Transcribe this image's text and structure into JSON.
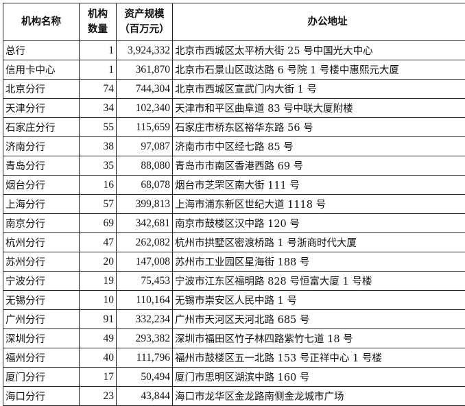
{
  "table": {
    "headers": {
      "name": "机构名称",
      "count_line1": "机构",
      "count_line2": "数量",
      "assets_line1": "资产规模",
      "assets_line2": "（百万元）",
      "address": "办公地址"
    },
    "rows": [
      {
        "name": "总行",
        "count": "1",
        "assets": "3,924,332",
        "address": "北京市西城区太平桥大街 25 号中国光大中心"
      },
      {
        "name": "信用卡中心",
        "count": "1",
        "assets": "361,870",
        "address": "北京市石景山区政达路 6 号院 1 号楼中惠熙元大厦"
      },
      {
        "name": "北京分行",
        "count": "74",
        "assets": "744,304",
        "address": "北京市西城区宣武门内大街 1 号"
      },
      {
        "name": "天津分行",
        "count": "34",
        "assets": "102,340",
        "address": "天津市和平区曲阜道 83 号中联大厦附楼"
      },
      {
        "name": "石家庄分行",
        "count": "55",
        "assets": "115,659",
        "address": "石家庄市桥东区裕华东路 56 号"
      },
      {
        "name": "济南分行",
        "count": "38",
        "assets": "97,087",
        "address": "济南市市中区经七路 85 号"
      },
      {
        "name": "青岛分行",
        "count": "35",
        "assets": "88,080",
        "address": "青岛市市南区香港西路 69 号"
      },
      {
        "name": "烟台分行",
        "count": "16",
        "assets": "68,078",
        "address": "烟台市芝罘区南大街 111 号"
      },
      {
        "name": "上海分行",
        "count": "57",
        "assets": "399,813",
        "address": "上海市浦东新区世纪大道 1118 号"
      },
      {
        "name": "南京分行",
        "count": "69",
        "assets": "342,681",
        "address": "南京市鼓楼区汉中路 120 号"
      },
      {
        "name": "杭州分行",
        "count": "47",
        "assets": "262,082",
        "address": "杭州市拱墅区密渡桥路 1 号浙商时代大厦"
      },
      {
        "name": "苏州分行",
        "count": "20",
        "assets": "147,008",
        "address": "苏州市工业园区星海街 188 号"
      },
      {
        "name": "宁波分行",
        "count": "19",
        "assets": "75,453",
        "address": "宁波市江东区福明路 828 号恒富大厦 1 号楼"
      },
      {
        "name": "无锡分行",
        "count": "10",
        "assets": "110,164",
        "address": "无锡市崇安区人民中路 1 号"
      },
      {
        "name": "广州分行",
        "count": "91",
        "assets": "332,234",
        "address": "广州市天河区天河北路 685 号"
      },
      {
        "name": "深圳分行",
        "count": "49",
        "assets": "293,382",
        "address": "深圳市福田区竹子林四路紫竹七道 18 号"
      },
      {
        "name": "福州分行",
        "count": "40",
        "assets": "111,796",
        "address": "福州市鼓楼区五一北路 153 号正祥中心 1 号楼"
      },
      {
        "name": "厦门分行",
        "count": "17",
        "assets": "50,494",
        "address": "厦门市思明区湖滨中路 160 号"
      },
      {
        "name": "海口分行",
        "count": "23",
        "assets": "43,844",
        "address": "海口市龙华区金龙路南侧金龙城市广场"
      }
    ]
  }
}
